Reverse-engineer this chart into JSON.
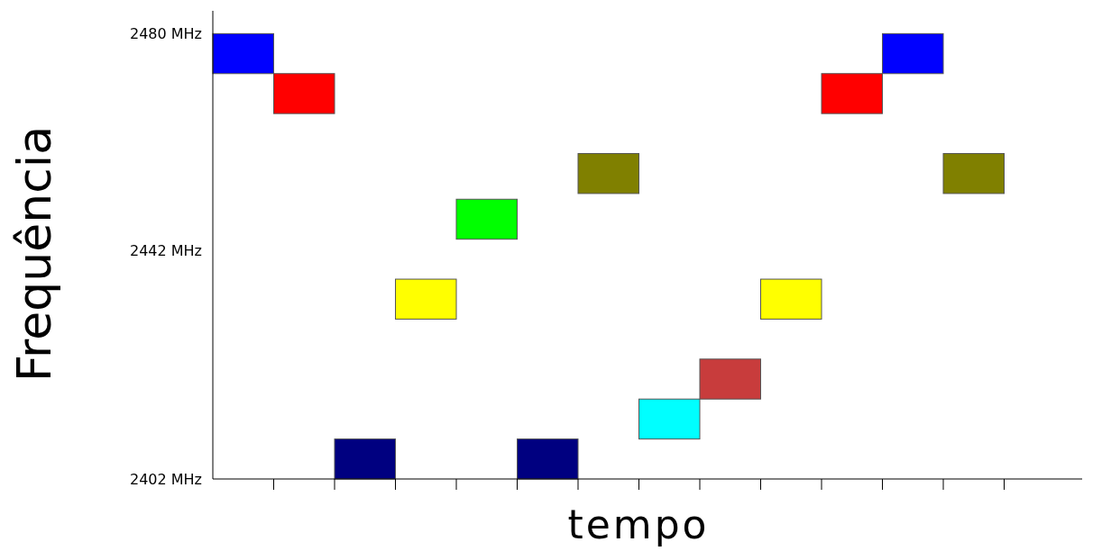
{
  "chart_data": {
    "type": "bar",
    "xlabel": "tempo",
    "ylabel": "Frequência",
    "categories": [
      null,
      null,
      null,
      null,
      null,
      null,
      null,
      null,
      null,
      null,
      null,
      null,
      null
    ],
    "values": [
      7,
      7,
      7,
      7,
      7,
      7,
      7,
      7,
      7,
      7,
      7,
      7,
      7
    ],
    "base": [
      2473,
      2466,
      2402,
      2430,
      2444,
      2402,
      2452,
      2409,
      2416,
      2430,
      2466,
      2473,
      2452
    ],
    "colors": [
      "#0000ff",
      "#ff0000",
      "#000080",
      "#ffff00",
      "#00ff00",
      "#000080",
      "#808000",
      "#00ffff",
      "#c83c3c",
      "#ffff00",
      "#ff0000",
      "#0000ff",
      "#808000"
    ],
    "ylim": [
      2402,
      2484
    ],
    "yticks": [
      {
        "value": 2402,
        "label": "2402 MHz"
      },
      {
        "value": 2442,
        "label": "2442 MHz"
      },
      {
        "value": 2480,
        "label": "2480 MHz"
      }
    ]
  }
}
